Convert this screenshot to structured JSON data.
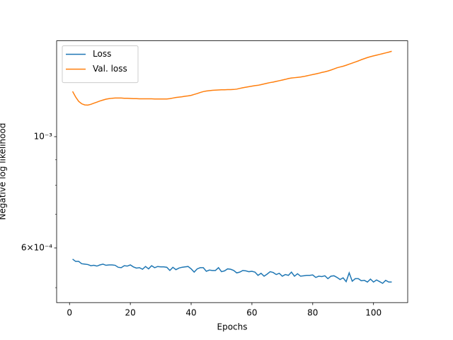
{
  "chart_data": {
    "type": "line",
    "x_label": "Epochs",
    "y_label": "Negative log likelihood",
    "x": [
      1,
      2,
      3,
      4,
      5,
      6,
      7,
      8,
      9,
      10,
      11,
      12,
      13,
      14,
      15,
      16,
      17,
      18,
      19,
      20,
      21,
      22,
      23,
      24,
      25,
      26,
      27,
      28,
      29,
      30,
      31,
      32,
      33,
      34,
      35,
      36,
      37,
      38,
      39,
      40,
      41,
      42,
      43,
      44,
      45,
      46,
      47,
      48,
      49,
      50,
      51,
      52,
      53,
      54,
      55,
      56,
      57,
      58,
      59,
      60,
      61,
      62,
      63,
      64,
      65,
      66,
      67,
      68,
      69,
      70,
      71,
      72,
      73,
      74,
      75,
      76,
      77,
      78,
      79,
      80,
      81,
      82,
      83,
      84,
      85,
      86,
      87,
      88,
      89,
      90,
      91,
      92,
      93,
      94,
      95,
      96,
      97,
      98,
      99,
      100,
      101,
      102,
      103,
      104,
      105,
      106
    ],
    "series": [
      {
        "name": "Loss",
        "color": "#1f77b4",
        "values": [
          0.00057,
          0.000564,
          0.000564,
          0.000558,
          0.000557,
          0.000556,
          0.000553,
          0.000554,
          0.000552,
          0.000555,
          0.000557,
          0.000554,
          0.000555,
          0.000555,
          0.000554,
          0.000549,
          0.000548,
          0.000553,
          0.000552,
          0.000555,
          0.00055,
          0.000547,
          0.000548,
          0.000544,
          0.000551,
          0.000545,
          0.000553,
          0.000548,
          0.000551,
          0.00055,
          0.00055,
          0.000549,
          0.000541,
          0.000549,
          0.000543,
          0.000547,
          0.000549,
          0.00055,
          0.000551,
          0.000545,
          0.000537,
          0.000545,
          0.000548,
          0.000548,
          0.000539,
          0.000542,
          0.000541,
          0.000541,
          0.000548,
          0.000538,
          0.00054,
          0.000545,
          0.000544,
          0.000541,
          0.000535,
          0.000537,
          0.000541,
          0.00054,
          0.000538,
          0.000539,
          0.000537,
          0.000529,
          0.000534,
          0.000527,
          0.000532,
          0.000538,
          0.000536,
          0.000531,
          0.000534,
          0.000527,
          0.000531,
          0.000529,
          0.000537,
          0.000527,
          0.000533,
          0.000527,
          0.000528,
          0.000529,
          0.000529,
          0.00053,
          0.000524,
          0.000527,
          0.000526,
          0.000528,
          0.000521,
          0.000527,
          0.000528,
          0.000524,
          0.000519,
          0.000523,
          0.000514,
          0.000535,
          0.000515,
          0.000521,
          0.000521,
          0.000516,
          0.000517,
          0.000513,
          0.00052,
          0.000513,
          0.000518,
          0.000514,
          0.00051,
          0.000517,
          0.000513,
          0.000513
        ]
      },
      {
        "name": "Val. loss",
        "color": "#ff7f0e",
        "values": [
          0.001231,
          0.0012,
          0.001176,
          0.001163,
          0.001157,
          0.001156,
          0.00116,
          0.001166,
          0.001172,
          0.001178,
          0.001183,
          0.001188,
          0.001191,
          0.001193,
          0.001194,
          0.001194,
          0.001194,
          0.001193,
          0.001193,
          0.001192,
          0.001191,
          0.001191,
          0.00119,
          0.00119,
          0.00119,
          0.00119,
          0.00119,
          0.001189,
          0.001189,
          0.001189,
          0.001189,
          0.001189,
          0.001191,
          0.001194,
          0.001197,
          0.001199,
          0.001201,
          0.001204,
          0.001206,
          0.001209,
          0.001214,
          0.001219,
          0.001225,
          0.00123,
          0.001233,
          0.001235,
          0.001237,
          0.001238,
          0.001239,
          0.00124,
          0.00124,
          0.001241,
          0.001241,
          0.001242,
          0.001244,
          0.001248,
          0.001252,
          0.001255,
          0.001258,
          0.001261,
          0.001264,
          0.001266,
          0.00127,
          0.001274,
          0.001278,
          0.001282,
          0.001285,
          0.001289,
          0.001293,
          0.001297,
          0.001301,
          0.001306,
          0.001309,
          0.001311,
          0.001313,
          0.001315,
          0.001318,
          0.001322,
          0.001326,
          0.00133,
          0.001334,
          0.001338,
          0.001343,
          0.001347,
          0.001352,
          0.001358,
          0.001365,
          0.001372,
          0.001377,
          0.001382,
          0.001388,
          0.001395,
          0.001402,
          0.001409,
          0.001416,
          0.001424,
          0.001431,
          0.001438,
          0.001444,
          0.001449,
          0.001454,
          0.001459,
          0.001464,
          0.001469,
          0.001474,
          0.00148
        ]
      }
    ],
    "xlim": [
      -4.25,
      111.25
    ],
    "xticks": [
      0,
      20,
      40,
      60,
      80,
      100
    ],
    "ylim": [
      0.0004668,
      0.001553
    ],
    "y_scale": "log",
    "yticks": [
      {
        "value": 0.0006,
        "label": "6×10⁻⁴"
      },
      {
        "value": 0.001,
        "label": "10⁻³"
      }
    ],
    "y_minor_ticks": [
      0.0005,
      0.0007,
      0.0008,
      0.0009
    ],
    "grid": false,
    "legend": "upper left"
  }
}
